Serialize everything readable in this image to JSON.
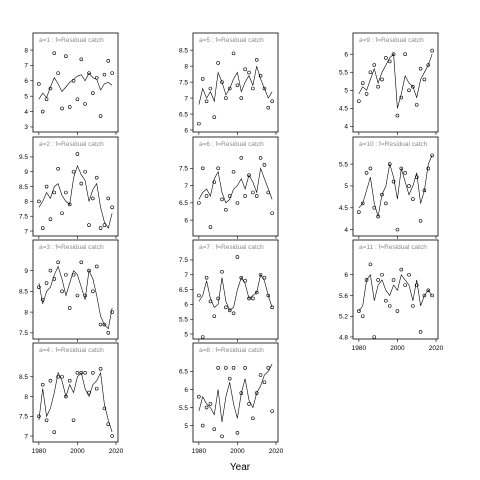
{
  "chart_data": {
    "type": "scatter",
    "title": "",
    "xlabel": "Year",
    "ylabel": "",
    "xlim": [
      1978,
      2020
    ],
    "xticks": [
      1980,
      2000,
      2020
    ],
    "panels": [
      {
        "strip": "a=1  :  f=Residual catch",
        "ylim": [
          2.8,
          8.2
        ],
        "yticks": [
          3,
          4,
          5,
          6,
          7,
          8
        ],
        "x": [
          1980,
          1982,
          1984,
          1986,
          1988,
          1990,
          1992,
          1994,
          1996,
          1998,
          2000,
          2002,
          2004,
          2006,
          2008,
          2010,
          2012,
          2014,
          2016,
          2018
        ],
        "line": [
          4.8,
          5.2,
          4.9,
          5.6,
          6.2,
          5.8,
          5.3,
          5.6,
          5.9,
          6.1,
          6.3,
          6.4,
          6.0,
          6.5,
          6.2,
          6.1,
          5.4,
          5.8,
          5.9,
          5.7
        ],
        "points": [
          5.8,
          4.0,
          4.8,
          5.5,
          7.8,
          6.5,
          4.2,
          7.6,
          4.3,
          6.0,
          4.8,
          7.4,
          4.5,
          6.5,
          5.2,
          6.2,
          3.7,
          6.4,
          7.3,
          6.5
        ]
      },
      {
        "strip": "a=2  :  f=Residual catch",
        "ylim": [
          6.9,
          9.7
        ],
        "yticks": [
          7.0,
          7.5,
          8.0,
          8.5,
          9.0,
          9.5
        ],
        "x": [
          1980,
          1982,
          1984,
          1986,
          1988,
          1990,
          1992,
          1994,
          1996,
          1998,
          2000,
          2002,
          2004,
          2006,
          2008,
          2010,
          2012,
          2014,
          2016,
          2018
        ],
        "line": [
          7.8,
          8.0,
          8.3,
          8.1,
          8.5,
          8.6,
          8.2,
          8.0,
          7.9,
          8.8,
          9.2,
          8.9,
          8.7,
          8.0,
          8.4,
          8.6,
          7.8,
          7.3,
          7.1,
          7.6
        ],
        "points": [
          8.0,
          7.1,
          8.5,
          7.4,
          8.3,
          9.1,
          7.6,
          8.3,
          7.9,
          9.0,
          9.6,
          8.6,
          9.0,
          7.2,
          8.1,
          8.8,
          7.1,
          7.2,
          8.1,
          7.8
        ]
      },
      {
        "strip": "a=3  :  f=Residual catch",
        "ylim": [
          7.4,
          9.4
        ],
        "yticks": [
          7.5,
          8.0,
          8.5,
          9.0
        ],
        "x": [
          1980,
          1982,
          1984,
          1986,
          1988,
          1990,
          1992,
          1994,
          1996,
          1998,
          2000,
          2002,
          2004,
          2006,
          2008,
          2010,
          2012,
          2014,
          2016,
          2018
        ],
        "line": [
          8.7,
          8.2,
          8.5,
          8.6,
          8.9,
          9.1,
          8.8,
          8.4,
          8.7,
          9.0,
          8.9,
          8.6,
          8.3,
          9.0,
          8.8,
          8.4,
          7.9,
          7.7,
          7.6,
          8.1
        ],
        "points": [
          8.6,
          8.3,
          8.7,
          9.0,
          8.8,
          9.2,
          8.5,
          8.9,
          8.1,
          8.9,
          8.4,
          9.2,
          8.4,
          9.0,
          8.5,
          9.1,
          7.7,
          7.7,
          7.5,
          8.0
        ]
      },
      {
        "strip": "a=4  :  f=Residual catch",
        "ylim": [
          6.9,
          9.0
        ],
        "yticks": [
          7.0,
          7.5,
          8.0,
          8.5
        ],
        "x": [
          1980,
          1982,
          1984,
          1986,
          1988,
          1990,
          1992,
          1994,
          1996,
          1998,
          2000,
          2002,
          2004,
          2006,
          2008,
          2010,
          2012,
          2014,
          2016,
          2018
        ],
        "line": [
          7.4,
          8.2,
          7.5,
          7.7,
          8.1,
          8.6,
          8.4,
          8.0,
          8.3,
          8.1,
          8.5,
          8.6,
          8.2,
          8.0,
          8.3,
          8.4,
          8.6,
          7.8,
          7.4,
          7.1
        ],
        "points": [
          7.5,
          8.3,
          7.4,
          8.4,
          7.1,
          8.5,
          8.5,
          8.0,
          8.4,
          7.4,
          8.6,
          8.6,
          8.6,
          8.1,
          8.6,
          8.2,
          8.7,
          7.7,
          7.3,
          7.0
        ]
      },
      {
        "strip": "a=5  :  f=Residual catch",
        "ylim": [
          6.0,
          8.6
        ],
        "yticks": [
          6.0,
          6.5,
          7.0,
          7.5,
          8.0,
          8.5
        ],
        "x": [
          1980,
          1982,
          1984,
          1986,
          1988,
          1990,
          1992,
          1994,
          1996,
          1998,
          2000,
          2002,
          2004,
          2006,
          2008,
          2010,
          2012,
          2014,
          2016,
          2018
        ],
        "line": [
          6.8,
          7.3,
          7.0,
          7.2,
          6.9,
          7.8,
          7.5,
          7.1,
          7.3,
          7.6,
          7.8,
          7.2,
          7.5,
          7.7,
          7.4,
          8.0,
          7.6,
          7.3,
          7.0,
          7.2
        ],
        "points": [
          6.2,
          7.6,
          6.9,
          7.3,
          6.4,
          8.1,
          7.5,
          7.0,
          7.3,
          8.4,
          7.4,
          7.0,
          7.9,
          7.8,
          7.3,
          8.2,
          7.7,
          7.3,
          6.7,
          6.9
        ]
      },
      {
        "strip": "a=6  :  f=Residual catch",
        "ylim": [
          5.6,
          8.0
        ],
        "yticks": [
          6.0,
          6.5,
          7.0,
          7.5
        ],
        "x": [
          1980,
          1982,
          1984,
          1986,
          1988,
          1990,
          1992,
          1994,
          1996,
          1998,
          2000,
          2002,
          2004,
          2006,
          2008,
          2010,
          2012,
          2014,
          2016,
          2018
        ],
        "line": [
          6.6,
          6.8,
          6.9,
          6.7,
          7.2,
          7.4,
          6.8,
          6.5,
          6.6,
          6.9,
          7.0,
          7.2,
          6.9,
          7.3,
          7.1,
          6.8,
          7.5,
          7.2,
          6.9,
          6.6
        ],
        "points": [
          6.5,
          7.5,
          6.7,
          5.8,
          7.1,
          7.5,
          6.6,
          6.3,
          6.7,
          7.4,
          6.5,
          7.8,
          6.7,
          7.3,
          6.8,
          6.7,
          7.8,
          7.6,
          6.8,
          6.2
        ]
      },
      {
        "strip": "a=7  :  f=Residual catch",
        "ylim": [
          4.9,
          7.7
        ],
        "yticks": [
          5.0,
          5.5,
          6.0,
          6.5,
          7.0,
          7.5
        ],
        "x": [
          1980,
          1982,
          1984,
          1986,
          1988,
          1990,
          1992,
          1994,
          1996,
          1998,
          2000,
          2002,
          2004,
          2006,
          2008,
          2010,
          2012,
          2014,
          2016,
          2018
        ],
        "line": [
          6.1,
          6.3,
          6.8,
          6.2,
          5.9,
          6.0,
          6.9,
          6.1,
          5.8,
          5.9,
          6.5,
          6.9,
          6.7,
          6.2,
          6.3,
          6.4,
          7.0,
          6.8,
          6.3,
          5.9
        ],
        "points": [
          6.3,
          4.9,
          6.9,
          6.1,
          5.6,
          6.2,
          7.1,
          5.9,
          5.8,
          5.7,
          7.6,
          6.9,
          6.8,
          6.2,
          6.2,
          6.4,
          7.0,
          6.9,
          6.3,
          5.9
        ]
      },
      {
        "strip": "a=8  :  f=Residual catch",
        "ylim": [
          4.6,
          6.9
        ],
        "yticks": [
          5.0,
          5.5,
          6.0,
          6.5
        ],
        "x": [
          1980,
          1982,
          1984,
          1986,
          1988,
          1990,
          1992,
          1994,
          1996,
          1998,
          2000,
          2002,
          2004,
          2006,
          2008,
          2010,
          2012,
          2014,
          2016,
          2018
        ],
        "line": [
          5.4,
          5.8,
          5.6,
          5.5,
          5.3,
          6.0,
          5.1,
          5.8,
          6.2,
          5.6,
          5.2,
          5.9,
          6.3,
          5.7,
          5.5,
          5.9,
          6.1,
          6.4,
          6.5,
          6.7
        ],
        "points": [
          5.8,
          5.0,
          5.5,
          5.6,
          4.9,
          6.6,
          4.7,
          6.6,
          6.3,
          6.6,
          4.8,
          5.9,
          6.6,
          5.6,
          5.2,
          5.9,
          6.4,
          6.2,
          6.6,
          5.4
        ]
      },
      {
        "strip": "a=9  :  f=Residual catch",
        "ylim": [
          3.9,
          6.2
        ],
        "yticks": [
          4.0,
          4.5,
          5.0,
          5.5,
          6.0
        ],
        "x": [
          1980,
          1982,
          1984,
          1986,
          1988,
          1990,
          1992,
          1994,
          1996,
          1998,
          2000,
          2002,
          2004,
          2006,
          2008,
          2010,
          2012,
          2014,
          2016,
          2018
        ],
        "line": [
          4.9,
          5.1,
          5.0,
          5.3,
          5.6,
          5.2,
          5.5,
          5.7,
          5.9,
          6.0,
          4.5,
          4.9,
          5.4,
          5.2,
          5.1,
          4.8,
          5.3,
          5.5,
          5.7,
          6.0
        ],
        "points": [
          4.7,
          5.2,
          4.9,
          5.5,
          5.7,
          5.1,
          5.3,
          5.9,
          5.8,
          6.0,
          4.3,
          4.8,
          6.0,
          5.0,
          5.1,
          4.6,
          5.6,
          5.3,
          5.7,
          6.1
        ]
      },
      {
        "strip": "a=10  :  f=Residual catch",
        "ylim": [
          3.9,
          5.8
        ],
        "yticks": [
          4.0,
          4.5,
          5.0,
          5.5
        ],
        "x": [
          1980,
          1982,
          1984,
          1986,
          1988,
          1990,
          1992,
          1994,
          1996,
          1998,
          2000,
          2002,
          2004,
          2006,
          2008,
          2010,
          2012,
          2014,
          2016,
          2018
        ],
        "line": [
          4.5,
          4.6,
          4.9,
          5.2,
          4.6,
          4.3,
          4.8,
          5.0,
          5.5,
          5.2,
          4.7,
          5.4,
          5.1,
          4.8,
          5.0,
          5.3,
          4.6,
          4.9,
          5.5,
          5.7
        ],
        "points": [
          4.4,
          4.6,
          5.3,
          5.4,
          4.5,
          4.3,
          4.8,
          4.6,
          5.5,
          5.1,
          4.0,
          5.4,
          5.3,
          5.0,
          4.7,
          5.2,
          4.2,
          4.9,
          5.4,
          5.7
        ]
      },
      {
        "strip": "a=11  :  f=Residual catch",
        "ylim": [
          4.8,
          6.4
        ],
        "yticks": [
          4.8,
          5.2,
          5.6,
          6.0
        ],
        "x": [
          1980,
          1982,
          1984,
          1986,
          1988,
          1990,
          1992,
          1994,
          1996,
          1998,
          2000,
          2002,
          2004,
          2006,
          2008,
          2010,
          2012,
          2014,
          2016,
          2018
        ],
        "line": [
          5.3,
          5.4,
          5.9,
          6.0,
          5.5,
          5.8,
          5.9,
          5.7,
          5.6,
          5.8,
          5.7,
          6.0,
          5.9,
          5.8,
          5.5,
          5.9,
          5.4,
          5.6,
          5.7,
          5.6
        ],
        "points": [
          5.3,
          5.2,
          5.9,
          6.2,
          4.8,
          5.9,
          6.0,
          5.5,
          5.4,
          5.9,
          5.3,
          6.1,
          5.8,
          6.0,
          5.4,
          5.8,
          4.9,
          5.6,
          5.7,
          5.6
        ]
      }
    ]
  }
}
